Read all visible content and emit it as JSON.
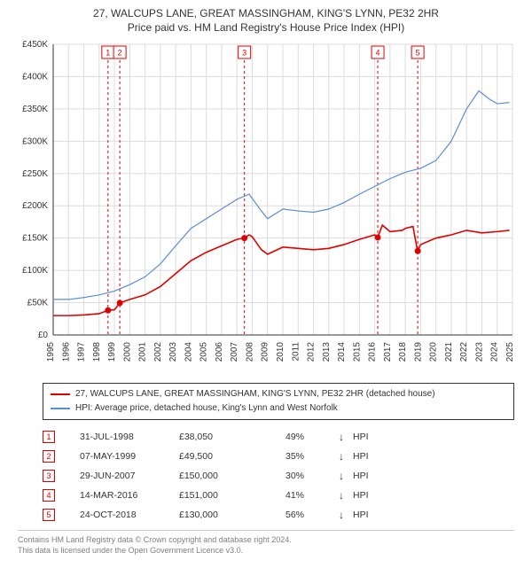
{
  "title": {
    "line1": "27, WALCUPS LANE, GREAT MASSINGHAM, KING'S LYNN, PE32 2HR",
    "line2": "Price paid vs. HM Land Registry's House Price Index (HPI)"
  },
  "chart": {
    "type": "line",
    "background_color": "#ffffff",
    "grid_color": "#dcdcdc",
    "axis_color": "#333333",
    "label_fontsize": 10,
    "x": {
      "min": 1995,
      "max": 2025,
      "ticks": [
        1995,
        1996,
        1997,
        1998,
        1999,
        2000,
        2001,
        2002,
        2003,
        2004,
        2005,
        2006,
        2007,
        2008,
        2009,
        2010,
        2011,
        2012,
        2013,
        2014,
        2015,
        2016,
        2017,
        2018,
        2019,
        2020,
        2021,
        2022,
        2023,
        2024,
        2025
      ]
    },
    "y": {
      "min": 0,
      "max": 450000,
      "tick_step": 50000,
      "prefix": "£",
      "suffix": "K",
      "ticks": [
        0,
        50000,
        100000,
        150000,
        200000,
        250000,
        300000,
        350000,
        400000,
        450000
      ]
    },
    "series": [
      {
        "id": "property",
        "label": "27, WALCUPS LANE, GREAT MASSINGHAM, KING'S LYNN, PE32 2HR (detached house)",
        "color": "#e00000",
        "line_width": 1.6,
        "data": [
          [
            1995.0,
            30000
          ],
          [
            1996.0,
            30000
          ],
          [
            1997.0,
            31000
          ],
          [
            1998.0,
            33000
          ],
          [
            1998.58,
            38050
          ],
          [
            1999.0,
            39000
          ],
          [
            1999.35,
            49500
          ],
          [
            2000.0,
            55000
          ],
          [
            2001.0,
            62000
          ],
          [
            2002.0,
            75000
          ],
          [
            2003.0,
            95000
          ],
          [
            2004.0,
            115000
          ],
          [
            2005.0,
            128000
          ],
          [
            2006.0,
            138000
          ],
          [
            2007.0,
            148000
          ],
          [
            2007.49,
            150000
          ],
          [
            2007.8,
            155000
          ],
          [
            2008.0,
            152000
          ],
          [
            2008.6,
            132000
          ],
          [
            2009.0,
            125000
          ],
          [
            2010.0,
            136000
          ],
          [
            2011.0,
            134000
          ],
          [
            2012.0,
            132000
          ],
          [
            2013.0,
            134000
          ],
          [
            2014.0,
            140000
          ],
          [
            2015.0,
            148000
          ],
          [
            2016.0,
            155000
          ],
          [
            2016.2,
            151000
          ],
          [
            2016.5,
            170000
          ],
          [
            2017.0,
            160000
          ],
          [
            2017.8,
            162000
          ],
          [
            2018.0,
            165000
          ],
          [
            2018.5,
            168000
          ],
          [
            2018.8,
            130000
          ],
          [
            2019.0,
            140000
          ],
          [
            2020.0,
            150000
          ],
          [
            2021.0,
            155000
          ],
          [
            2022.0,
            162000
          ],
          [
            2023.0,
            158000
          ],
          [
            2024.0,
            160000
          ],
          [
            2024.8,
            162000
          ]
        ],
        "markers": [
          {
            "n": 1,
            "x": 1998.58,
            "y": 38050
          },
          {
            "n": 2,
            "x": 1999.35,
            "y": 49500
          },
          {
            "n": 3,
            "x": 2007.49,
            "y": 150000
          },
          {
            "n": 4,
            "x": 2016.2,
            "y": 151000
          },
          {
            "n": 5,
            "x": 2018.81,
            "y": 130000
          }
        ]
      },
      {
        "id": "hpi",
        "label": "HPI: Average price, detached house, King's Lynn and West Norfolk",
        "color": "#5b8dd6",
        "line_width": 1.2,
        "data": [
          [
            1995.0,
            55000
          ],
          [
            1996.0,
            55000
          ],
          [
            1997.0,
            58000
          ],
          [
            1998.0,
            62000
          ],
          [
            1999.0,
            68000
          ],
          [
            2000.0,
            78000
          ],
          [
            2001.0,
            90000
          ],
          [
            2002.0,
            110000
          ],
          [
            2003.0,
            138000
          ],
          [
            2004.0,
            165000
          ],
          [
            2005.0,
            180000
          ],
          [
            2006.0,
            195000
          ],
          [
            2007.0,
            210000
          ],
          [
            2007.8,
            218000
          ],
          [
            2008.5,
            195000
          ],
          [
            2009.0,
            180000
          ],
          [
            2010.0,
            195000
          ],
          [
            2011.0,
            192000
          ],
          [
            2012.0,
            190000
          ],
          [
            2013.0,
            195000
          ],
          [
            2014.0,
            205000
          ],
          [
            2015.0,
            218000
          ],
          [
            2016.0,
            230000
          ],
          [
            2017.0,
            242000
          ],
          [
            2018.0,
            252000
          ],
          [
            2019.0,
            258000
          ],
          [
            2020.0,
            270000
          ],
          [
            2021.0,
            300000
          ],
          [
            2022.0,
            350000
          ],
          [
            2022.8,
            378000
          ],
          [
            2023.5,
            365000
          ],
          [
            2024.0,
            358000
          ],
          [
            2024.8,
            360000
          ]
        ]
      }
    ],
    "sale_marker_style": {
      "vline_color": "#e00000",
      "vline_dash": "3,3",
      "box_border": "#e00000",
      "box_fill": "#ffffff",
      "box_text_color": "#e00000",
      "box_size": 14,
      "dot_radius": 3.5
    }
  },
  "legend": {
    "border_color": "#333333",
    "items": [
      {
        "color": "#e00000",
        "label": "27, WALCUPS LANE, GREAT MASSINGHAM, KING'S LYNN, PE32 2HR (detached house)"
      },
      {
        "color": "#5b8dd6",
        "label": "HPI: Average price, detached house, King's Lynn and West Norfolk"
      }
    ]
  },
  "sales": {
    "hpi_label": "HPI",
    "arrow": "↓",
    "rows": [
      {
        "n": "1",
        "date": "31-JUL-1998",
        "price": "£38,050",
        "pct": "49%"
      },
      {
        "n": "2",
        "date": "07-MAY-1999",
        "price": "£49,500",
        "pct": "35%"
      },
      {
        "n": "3",
        "date": "29-JUN-2007",
        "price": "£150,000",
        "pct": "30%"
      },
      {
        "n": "4",
        "date": "14-MAR-2016",
        "price": "£151,000",
        "pct": "41%"
      },
      {
        "n": "5",
        "date": "24-OCT-2018",
        "price": "£130,000",
        "pct": "56%"
      }
    ]
  },
  "footer": {
    "line1": "Contains HM Land Registry data © Crown copyright and database right 2024.",
    "line2": "This data is licensed under the Open Government Licence v3.0."
  }
}
